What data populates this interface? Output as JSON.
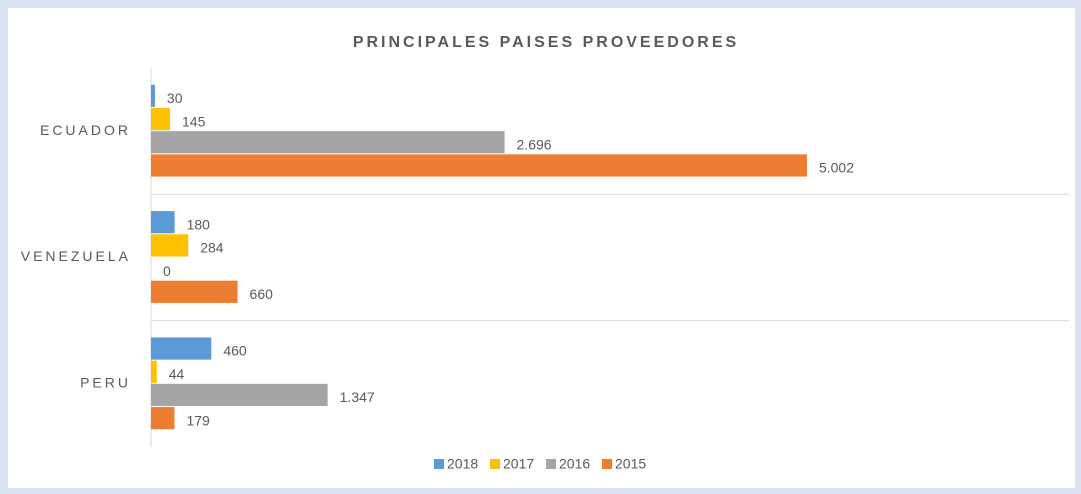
{
  "chart_data": {
    "type": "hbar",
    "title": "PRINCIPALES  PAISES PROVEEDORES",
    "categories": [
      "ECUADOR",
      "VENEZUELA",
      "PERU"
    ],
    "series": [
      {
        "name": "2018",
        "color": "#5b9bd5",
        "values": [
          30,
          180,
          460
        ],
        "value_labels": [
          "30",
          "180",
          "460"
        ]
      },
      {
        "name": "2017",
        "color": "#ffc000",
        "values": [
          145,
          284,
          44
        ],
        "value_labels": [
          "145",
          "284",
          "44"
        ]
      },
      {
        "name": "2016",
        "color": "#a5a5a5",
        "values": [
          2696,
          0,
          1347
        ],
        "value_labels": [
          "2.696",
          "0",
          "1.347"
        ]
      },
      {
        "name": "2015",
        "color": "#ed7d31",
        "values": [
          5002,
          660,
          179
        ],
        "value_labels": [
          "5.002",
          "660",
          "179"
        ]
      }
    ],
    "xlim": [
      0,
      7000
    ],
    "legend": "bottom"
  }
}
